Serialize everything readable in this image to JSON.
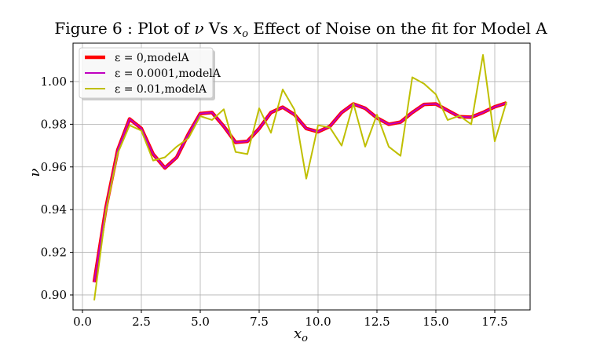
{
  "chart_data": {
    "type": "line",
    "title": "Figure 6 : Plot of ν Vs x_o Effect of Noise on the fit for Model A",
    "title_parts": {
      "prefix": "Figure 6 : Plot of ",
      "nu": "ν",
      "mid": " Vs ",
      "x": "x",
      "sub": "o",
      "suffix": " Effect of Noise on the fit for Model A"
    },
    "xlabel": "x",
    "xlabel_sub": "o",
    "ylabel": "ν",
    "xlim": [
      -0.4,
      19.0
    ],
    "ylim": [
      0.893,
      1.018
    ],
    "xticks": [
      0.0,
      2.5,
      5.0,
      7.5,
      10.0,
      12.5,
      15.0,
      17.5
    ],
    "xtick_labels": [
      "0.0",
      "2.5",
      "5.0",
      "7.5",
      "10.0",
      "12.5",
      "15.0",
      "17.5"
    ],
    "yticks": [
      0.9,
      0.92,
      0.94,
      0.96,
      0.98,
      1.0
    ],
    "ytick_labels": [
      "0.90",
      "0.92",
      "0.94",
      "0.96",
      "0.98",
      "1.00"
    ],
    "grid": true,
    "legend_position": "top-left",
    "series": [
      {
        "name": "ε = 0,modelA",
        "color": "#ff0000",
        "width": 4.5,
        "x": [
          0.5,
          1.0,
          1.5,
          2.0,
          2.5,
          3.0,
          3.5,
          4.0,
          4.5,
          5.0,
          5.5,
          6.0,
          6.5,
          7.0,
          7.5,
          8.0,
          8.5,
          9.0,
          9.5,
          10.0,
          10.5,
          11.0,
          11.5,
          12.0,
          12.5,
          13.0,
          13.5,
          14.0,
          14.5,
          15.0,
          15.5,
          16.0,
          16.5,
          17.0,
          17.5,
          18.0
        ],
        "y": [
          0.906,
          0.941,
          0.968,
          0.9825,
          0.978,
          0.966,
          0.9595,
          0.9645,
          0.9755,
          0.985,
          0.9855,
          0.979,
          0.9715,
          0.972,
          0.978,
          0.9855,
          0.988,
          0.9845,
          0.978,
          0.9765,
          0.979,
          0.9855,
          0.9895,
          0.9875,
          0.983,
          0.98,
          0.981,
          0.9855,
          0.9893,
          0.9895,
          0.9865,
          0.9835,
          0.9833,
          0.9855,
          0.9882,
          0.99
        ]
      },
      {
        "name": "ε = 0.0001,modelA",
        "color": "#c000c0",
        "width": 2.0,
        "x": [
          0.5,
          1.0,
          1.5,
          2.0,
          2.5,
          3.0,
          3.5,
          4.0,
          4.5,
          5.0,
          5.5,
          6.0,
          6.5,
          7.0,
          7.5,
          8.0,
          8.5,
          9.0,
          9.5,
          10.0,
          10.5,
          11.0,
          11.5,
          12.0,
          12.5,
          13.0,
          13.5,
          14.0,
          14.5,
          15.0,
          15.5,
          16.0,
          16.5,
          17.0,
          17.5,
          18.0
        ],
        "y": [
          0.906,
          0.941,
          0.968,
          0.9825,
          0.978,
          0.966,
          0.9595,
          0.9645,
          0.9755,
          0.985,
          0.9855,
          0.979,
          0.9715,
          0.972,
          0.978,
          0.9855,
          0.988,
          0.9845,
          0.978,
          0.9765,
          0.979,
          0.9855,
          0.9895,
          0.9875,
          0.983,
          0.98,
          0.981,
          0.9855,
          0.9893,
          0.9895,
          0.9865,
          0.9835,
          0.9833,
          0.9855,
          0.9882,
          0.99
        ]
      },
      {
        "name": "ε = 0.01,modelA",
        "color": "#bfbf00",
        "width": 2.0,
        "x": [
          0.5,
          1.0,
          1.5,
          2.0,
          2.5,
          3.0,
          3.5,
          4.0,
          4.5,
          5.0,
          5.5,
          6.0,
          6.5,
          7.0,
          7.5,
          8.0,
          8.5,
          9.0,
          9.5,
          10.0,
          10.5,
          11.0,
          11.5,
          12.0,
          12.5,
          13.0,
          13.5,
          14.0,
          14.5,
          15.0,
          15.5,
          16.0,
          16.5,
          17.0,
          17.5,
          18.0
        ],
        "y": [
          0.8975,
          0.9395,
          0.9665,
          0.9795,
          0.977,
          0.963,
          0.9645,
          0.9695,
          0.9735,
          0.9838,
          0.982,
          0.987,
          0.967,
          0.966,
          0.9875,
          0.976,
          0.9963,
          0.9868,
          0.9545,
          0.9795,
          0.9785,
          0.97,
          0.9898,
          0.9695,
          0.9845,
          0.9695,
          0.9652,
          1.002,
          0.999,
          0.994,
          0.982,
          0.984,
          0.98,
          1.0125,
          0.972,
          0.9905
        ]
      }
    ]
  }
}
